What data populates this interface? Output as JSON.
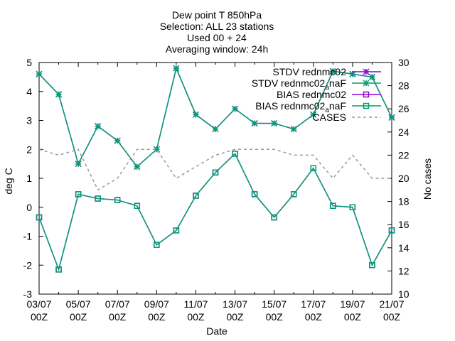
{
  "chart_data": {
    "type": "line",
    "title_lines": [
      "Dew point T 850hPa",
      "Selection: ALL      23 stations",
      "Used 00 + 24",
      "Averaging window: 24h"
    ],
    "xlabel": "Date",
    "ylabel_left": "deg C",
    "ylabel_right": "No cases",
    "ylim_left": [
      -3,
      5
    ],
    "ylim_right": [
      10,
      30
    ],
    "yticks_left": [
      "-3",
      "-2",
      "-1",
      "0",
      "1",
      "2",
      "3",
      "4",
      "5"
    ],
    "yticks_right": [
      "10",
      "12",
      "14",
      "16",
      "18",
      "20",
      "22",
      "24",
      "26",
      "28",
      "30"
    ],
    "xticks": [
      {
        "top": "03/07",
        "bottom": "00Z"
      },
      {
        "top": "05/07",
        "bottom": "00Z"
      },
      {
        "top": "07/07",
        "bottom": "00Z"
      },
      {
        "top": "09/07",
        "bottom": "00Z"
      },
      {
        "top": "11/07",
        "bottom": "00Z"
      },
      {
        "top": "13/07",
        "bottom": "00Z"
      },
      {
        "top": "15/07",
        "bottom": "00Z"
      },
      {
        "top": "17/07",
        "bottom": "00Z"
      },
      {
        "top": "19/07",
        "bottom": "00Z"
      },
      {
        "top": "21/07",
        "bottom": "00Z"
      }
    ],
    "x_day_range": [
      3,
      21
    ],
    "legend_position": "top-right",
    "series": [
      {
        "name": "STDV rednmc02",
        "axis": "left",
        "color": "#9400d3",
        "marker": "star",
        "x": [
          3,
          4,
          5,
          6,
          7,
          8,
          9,
          10,
          11,
          12,
          13,
          14,
          15,
          16,
          17,
          18,
          19,
          20,
          21
        ],
        "values": [
          4.6,
          3.9,
          1.5,
          2.8,
          2.3,
          1.4,
          2.0,
          4.8,
          3.2,
          2.7,
          3.4,
          2.9,
          2.9,
          2.7,
          3.2,
          4.7,
          4.6,
          4.5,
          3.1
        ]
      },
      {
        "name_parts": [
          "STDV rednmc02",
          "a",
          "naF"
        ],
        "axis": "left",
        "color": "#009e73",
        "marker": "star",
        "x": [
          3,
          4,
          5,
          6,
          7,
          8,
          9,
          10,
          11,
          12,
          13,
          14,
          15,
          16,
          17,
          18,
          19,
          20,
          21
        ],
        "values": [
          4.6,
          3.9,
          1.5,
          2.8,
          2.3,
          1.4,
          2.0,
          4.8,
          3.2,
          2.7,
          3.4,
          2.9,
          2.9,
          2.7,
          3.2,
          4.7,
          4.6,
          4.5,
          3.1
        ]
      },
      {
        "name": "BIAS rednmc02",
        "axis": "left",
        "color": "#9400d3",
        "marker": "square",
        "x": [
          3,
          4,
          5,
          6,
          7,
          8,
          9,
          10,
          11,
          12,
          13,
          14,
          15,
          16,
          17,
          18,
          19,
          20,
          21
        ],
        "values": [
          -0.35,
          -2.15,
          0.45,
          0.3,
          0.25,
          0.05,
          -1.3,
          -0.8,
          0.4,
          1.2,
          1.85,
          0.45,
          -0.35,
          0.45,
          1.35,
          0.05,
          0.0,
          -2.0,
          -0.8
        ]
      },
      {
        "name_parts": [
          "BIAS rednmc02",
          "a",
          "naF"
        ],
        "axis": "left",
        "color": "#009e73",
        "marker": "square",
        "x": [
          3,
          4,
          5,
          6,
          7,
          8,
          9,
          10,
          11,
          12,
          13,
          14,
          15,
          16,
          17,
          18,
          19,
          20,
          21
        ],
        "values": [
          -0.35,
          -2.15,
          0.45,
          0.3,
          0.25,
          0.05,
          -1.3,
          -0.8,
          0.4,
          1.2,
          1.85,
          0.45,
          -0.35,
          0.45,
          1.35,
          0.05,
          0.0,
          -2.0,
          -0.8
        ]
      },
      {
        "name": "CASES",
        "axis": "right",
        "color": "#999999",
        "marker": "none",
        "dashed": true,
        "x": [
          3,
          4,
          5,
          6,
          7,
          8,
          9,
          10,
          11,
          12,
          13,
          14,
          15,
          16,
          17,
          18,
          19,
          20,
          21
        ],
        "values": [
          22.5,
          22,
          22.5,
          19,
          20,
          22.5,
          22.5,
          20,
          21,
          22,
          22.5,
          22.5,
          22.5,
          22,
          22,
          20,
          22,
          20,
          20
        ]
      }
    ]
  }
}
